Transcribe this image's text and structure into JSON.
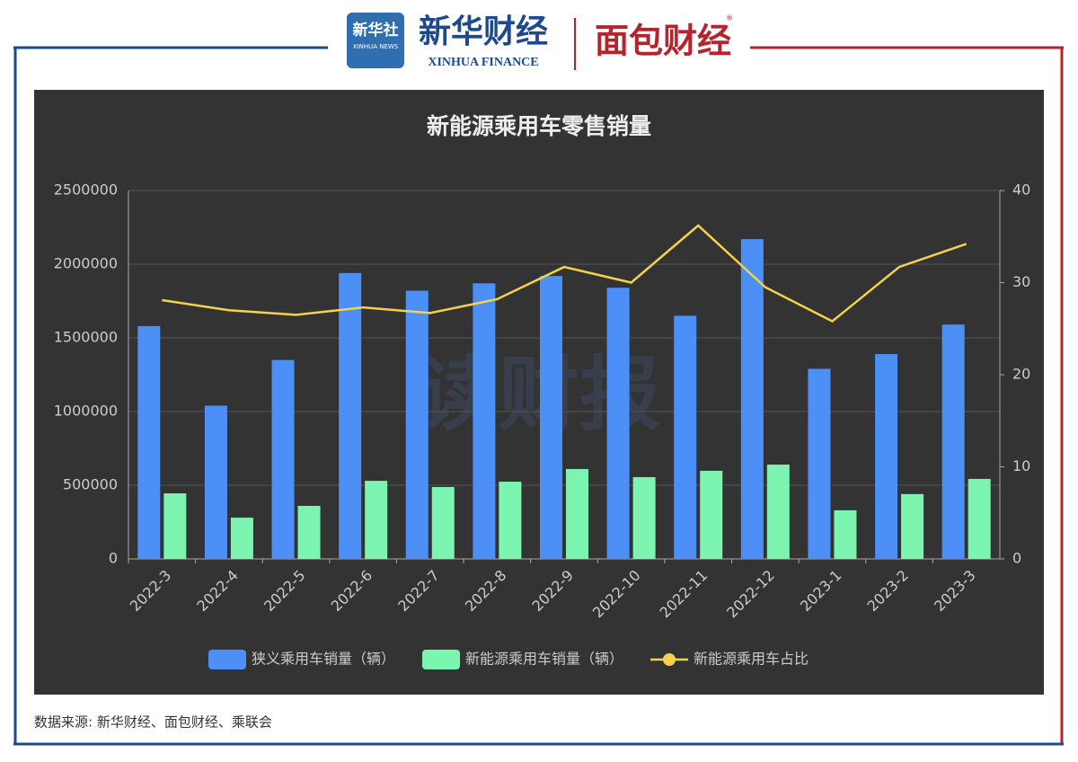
{
  "header": {
    "xinhua_logo": "新华社",
    "xinhua_logo_en": "XINHUA NEWS",
    "brand": "新华财经",
    "brand_en": "XINHUA FINANCE",
    "partner": "面包财经",
    "registered": "®"
  },
  "watermark": "读财报",
  "source": "数据来源: 新华财经、面包财经、乘联会",
  "chart_data": {
    "type": "bar",
    "title": "新能源乘用车零售销量",
    "categories": [
      "2022-3",
      "2022-4",
      "2022-5",
      "2022-6",
      "2022-7",
      "2022-8",
      "2022-9",
      "2022-10",
      "2022-11",
      "2022-12",
      "2023-1",
      "2023-2",
      "2023-3"
    ],
    "series": [
      {
        "name": "狭义乘用车销量（辆）",
        "color": "#4c8ff7",
        "type": "bar",
        "values": [
          1580000,
          1040000,
          1350000,
          1940000,
          1820000,
          1870000,
          1920000,
          1840000,
          1650000,
          2170000,
          1290000,
          1390000,
          1590000
        ]
      },
      {
        "name": "新能源乘用车销量（辆）",
        "color": "#7cf5b0",
        "type": "bar",
        "values": [
          445000,
          280000,
          360000,
          530000,
          488000,
          524000,
          610000,
          555000,
          598000,
          640000,
          330000,
          440000,
          543000
        ]
      },
      {
        "name": "新能源乘用车占比",
        "color": "#f3d34a",
        "type": "line",
        "axis": "y2",
        "values": [
          28.1,
          27.0,
          26.5,
          27.3,
          26.7,
          28.2,
          31.7,
          30.0,
          36.2,
          29.5,
          25.8,
          31.7,
          34.2
        ]
      }
    ],
    "ylim": [
      0,
      2500000
    ],
    "yticks": [
      0,
      500000,
      1000000,
      1500000,
      2000000,
      2500000
    ],
    "y2lim": [
      0,
      40
    ],
    "y2ticks": [
      0,
      10,
      20,
      30,
      40
    ],
    "grid": true
  }
}
